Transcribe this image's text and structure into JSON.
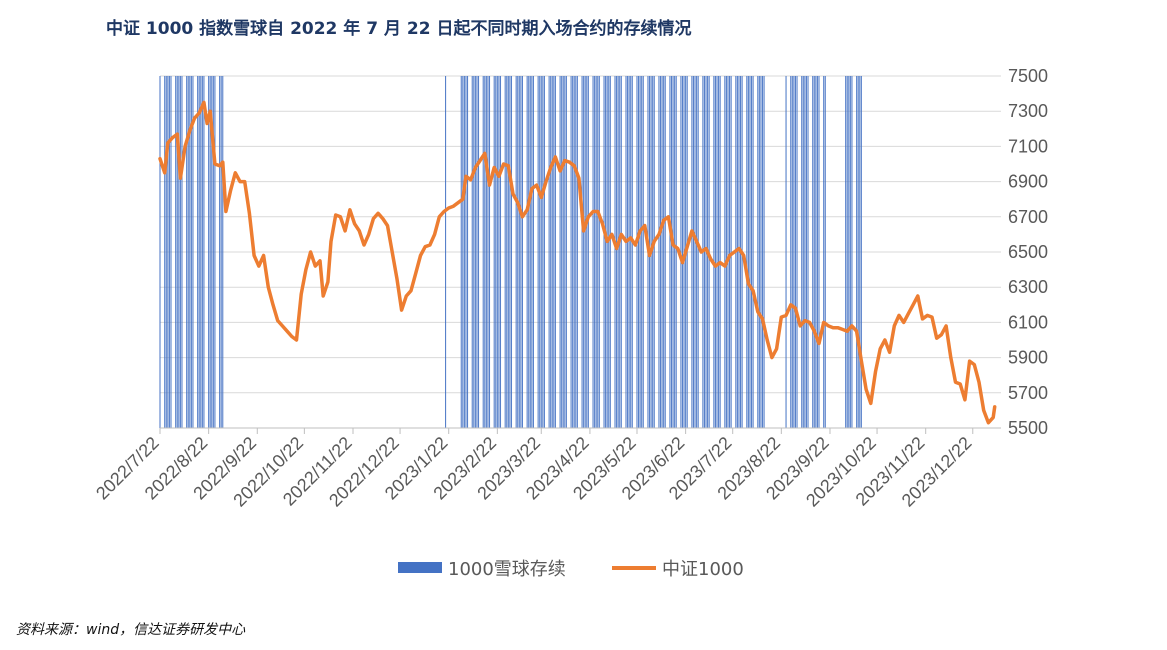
{
  "title": "中证 1000 指数雪球自 2022 年 7 月 22 日起不同时期入场合约的存续情况",
  "source": "资料来源：wind，信达证券研发中心",
  "chart_data": {
    "type": "bar+line",
    "title": "中证 1000 指数雪球自 2022 年 7 月 22 日起不同时期入场合约的存续情况",
    "x_tick_labels": [
      "2022/7/22",
      "2022/8/22",
      "2022/9/22",
      "2022/10/22",
      "2022/11/22",
      "2022/12/22",
      "2023/1/22",
      "2023/2/22",
      "2023/3/22",
      "2023/4/22",
      "2023/5/22",
      "2023/6/22",
      "2023/7/22",
      "2023/8/22",
      "2023/9/22",
      "2023/10/22",
      "2023/11/22",
      "2023/12/22"
    ],
    "x_range": [
      "2022-07-22",
      "2024-01-09"
    ],
    "ylim": [
      5500,
      7500
    ],
    "y_ticks": [
      5500,
      5700,
      5900,
      6100,
      6300,
      6500,
      6700,
      6900,
      7100,
      7300,
      7500
    ],
    "grid": "horizontal",
    "legend_position": "bottom",
    "colors": {
      "bars": "#4472c4",
      "line": "#ed7d31",
      "axis_text": "#595959",
      "title": "#1f3864"
    },
    "series": [
      {
        "name": "1000雪球存续",
        "kind": "bar",
        "description": "survival flag (1 = contract still alive) for contracts entered on each date",
        "alive_date_ranges": [
          [
            "2022-07-22",
            "2022-08-31"
          ],
          [
            "2023-01-20",
            "2023-01-20"
          ],
          [
            "2023-01-30",
            "2023-08-11"
          ],
          [
            "2023-08-25",
            "2023-09-19"
          ],
          [
            "2023-10-02",
            "2023-10-12"
          ]
        ]
      },
      {
        "name": "中证1000",
        "kind": "line",
        "points": [
          [
            "2022-07-22",
            7030
          ],
          [
            "2022-07-25",
            6950
          ],
          [
            "2022-07-27",
            7120
          ],
          [
            "2022-07-30",
            7150
          ],
          [
            "2022-08-02",
            7170
          ],
          [
            "2022-08-04",
            6920
          ],
          [
            "2022-08-07",
            7100
          ],
          [
            "2022-08-10",
            7190
          ],
          [
            "2022-08-13",
            7260
          ],
          [
            "2022-08-16",
            7290
          ],
          [
            "2022-08-19",
            7350
          ],
          [
            "2022-08-21",
            7230
          ],
          [
            "2022-08-23",
            7300
          ],
          [
            "2022-08-26",
            7000
          ],
          [
            "2022-08-29",
            6990
          ],
          [
            "2022-08-31",
            7010
          ],
          [
            "2022-09-02",
            6730
          ],
          [
            "2022-09-05",
            6850
          ],
          [
            "2022-09-08",
            6950
          ],
          [
            "2022-09-11",
            6900
          ],
          [
            "2022-09-14",
            6900
          ],
          [
            "2022-09-17",
            6720
          ],
          [
            "2022-09-20",
            6480
          ],
          [
            "2022-09-23",
            6420
          ],
          [
            "2022-09-26",
            6480
          ],
          [
            "2022-09-29",
            6300
          ],
          [
            "2022-10-02",
            6200
          ],
          [
            "2022-10-05",
            6110
          ],
          [
            "2022-10-08",
            6080
          ],
          [
            "2022-10-11",
            6050
          ],
          [
            "2022-10-14",
            6020
          ],
          [
            "2022-10-17",
            6000
          ],
          [
            "2022-10-20",
            6260
          ],
          [
            "2022-10-23",
            6400
          ],
          [
            "2022-10-26",
            6500
          ],
          [
            "2022-10-29",
            6420
          ],
          [
            "2022-11-01",
            6450
          ],
          [
            "2022-11-03",
            6250
          ],
          [
            "2022-11-06",
            6330
          ],
          [
            "2022-11-08",
            6560
          ],
          [
            "2022-11-11",
            6710
          ],
          [
            "2022-11-14",
            6700
          ],
          [
            "2022-11-17",
            6620
          ],
          [
            "2022-11-20",
            6740
          ],
          [
            "2022-11-23",
            6660
          ],
          [
            "2022-11-26",
            6620
          ],
          [
            "2022-11-29",
            6540
          ],
          [
            "2022-12-02",
            6600
          ],
          [
            "2022-12-05",
            6690
          ],
          [
            "2022-12-08",
            6720
          ],
          [
            "2022-12-11",
            6690
          ],
          [
            "2022-12-14",
            6650
          ],
          [
            "2022-12-17",
            6500
          ],
          [
            "2022-12-20",
            6350
          ],
          [
            "2022-12-23",
            6170
          ],
          [
            "2022-12-26",
            6250
          ],
          [
            "2022-12-29",
            6280
          ],
          [
            "2023-01-01",
            6380
          ],
          [
            "2023-01-04",
            6480
          ],
          [
            "2023-01-07",
            6530
          ],
          [
            "2023-01-10",
            6540
          ],
          [
            "2023-01-13",
            6600
          ],
          [
            "2023-01-16",
            6700
          ],
          [
            "2023-01-19",
            6730
          ],
          [
            "2023-01-22",
            6750
          ],
          [
            "2023-01-25",
            6760
          ],
          [
            "2023-01-28",
            6780
          ],
          [
            "2023-01-31",
            6800
          ],
          [
            "2023-02-02",
            6930
          ],
          [
            "2023-02-05",
            6910
          ],
          [
            "2023-02-08",
            6980
          ],
          [
            "2023-02-11",
            7020
          ],
          [
            "2023-02-14",
            7060
          ],
          [
            "2023-02-17",
            6880
          ],
          [
            "2023-02-20",
            6980
          ],
          [
            "2023-02-23",
            6930
          ],
          [
            "2023-02-26",
            7000
          ],
          [
            "2023-03-01",
            6990
          ],
          [
            "2023-03-04",
            6830
          ],
          [
            "2023-03-07",
            6780
          ],
          [
            "2023-03-10",
            6700
          ],
          [
            "2023-03-13",
            6740
          ],
          [
            "2023-03-16",
            6860
          ],
          [
            "2023-03-19",
            6880
          ],
          [
            "2023-03-22",
            6810
          ],
          [
            "2023-03-25",
            6900
          ],
          [
            "2023-03-28",
            6980
          ],
          [
            "2023-03-31",
            7040
          ],
          [
            "2023-04-03",
            6960
          ],
          [
            "2023-04-06",
            7020
          ],
          [
            "2023-04-09",
            7010
          ],
          [
            "2023-04-12",
            6990
          ],
          [
            "2023-04-15",
            6920
          ],
          [
            "2023-04-18",
            6620
          ],
          [
            "2023-04-21",
            6700
          ],
          [
            "2023-04-24",
            6730
          ],
          [
            "2023-04-27",
            6730
          ],
          [
            "2023-04-30",
            6660
          ],
          [
            "2023-05-03",
            6560
          ],
          [
            "2023-05-06",
            6600
          ],
          [
            "2023-05-09",
            6520
          ],
          [
            "2023-05-12",
            6600
          ],
          [
            "2023-05-15",
            6560
          ],
          [
            "2023-05-18",
            6580
          ],
          [
            "2023-05-21",
            6540
          ],
          [
            "2023-05-24",
            6620
          ],
          [
            "2023-05-27",
            6650
          ],
          [
            "2023-05-30",
            6480
          ],
          [
            "2023-06-02",
            6560
          ],
          [
            "2023-06-05",
            6600
          ],
          [
            "2023-06-08",
            6680
          ],
          [
            "2023-06-11",
            6700
          ],
          [
            "2023-06-14",
            6540
          ],
          [
            "2023-06-17",
            6520
          ],
          [
            "2023-06-20",
            6440
          ],
          [
            "2023-06-23",
            6530
          ],
          [
            "2023-06-26",
            6620
          ],
          [
            "2023-06-29",
            6560
          ],
          [
            "2023-07-02",
            6500
          ],
          [
            "2023-07-05",
            6520
          ],
          [
            "2023-07-08",
            6460
          ],
          [
            "2023-07-11",
            6420
          ],
          [
            "2023-07-14",
            6440
          ],
          [
            "2023-07-17",
            6420
          ],
          [
            "2023-07-20",
            6480
          ],
          [
            "2023-07-23",
            6500
          ],
          [
            "2023-07-26",
            6520
          ],
          [
            "2023-07-29",
            6480
          ],
          [
            "2023-08-01",
            6320
          ],
          [
            "2023-08-04",
            6280
          ],
          [
            "2023-08-07",
            6160
          ],
          [
            "2023-08-10",
            6120
          ],
          [
            "2023-08-13",
            6000
          ],
          [
            "2023-08-16",
            5900
          ],
          [
            "2023-08-19",
            5950
          ],
          [
            "2023-08-22",
            6130
          ],
          [
            "2023-08-25",
            6140
          ],
          [
            "2023-08-28",
            6200
          ],
          [
            "2023-08-31",
            6180
          ],
          [
            "2023-09-03",
            6080
          ],
          [
            "2023-09-06",
            6110
          ],
          [
            "2023-09-09",
            6100
          ],
          [
            "2023-09-12",
            6050
          ],
          [
            "2023-09-15",
            5980
          ],
          [
            "2023-09-18",
            6100
          ],
          [
            "2023-09-21",
            6080
          ],
          [
            "2023-09-24",
            6070
          ],
          [
            "2023-09-27",
            6070
          ],
          [
            "2023-09-30",
            6060
          ],
          [
            "2023-10-03",
            6050
          ],
          [
            "2023-10-06",
            6080
          ],
          [
            "2023-10-09",
            6050
          ],
          [
            "2023-10-12",
            5880
          ],
          [
            "2023-10-15",
            5720
          ],
          [
            "2023-10-18",
            5640
          ],
          [
            "2023-10-21",
            5820
          ],
          [
            "2023-10-24",
            5950
          ],
          [
            "2023-10-27",
            6000
          ],
          [
            "2023-10-30",
            5930
          ],
          [
            "2023-11-02",
            6080
          ],
          [
            "2023-11-05",
            6140
          ],
          [
            "2023-11-08",
            6100
          ],
          [
            "2023-11-11",
            6150
          ],
          [
            "2023-11-14",
            6200
          ],
          [
            "2023-11-17",
            6250
          ],
          [
            "2023-11-20",
            6120
          ],
          [
            "2023-11-23",
            6140
          ],
          [
            "2023-11-26",
            6130
          ],
          [
            "2023-11-29",
            6010
          ],
          [
            "2023-12-02",
            6030
          ],
          [
            "2023-12-05",
            6080
          ],
          [
            "2023-12-08",
            5900
          ],
          [
            "2023-12-11",
            5760
          ],
          [
            "2023-12-14",
            5750
          ],
          [
            "2023-12-17",
            5660
          ],
          [
            "2023-12-20",
            5880
          ],
          [
            "2023-12-23",
            5860
          ],
          [
            "2023-12-26",
            5760
          ],
          [
            "2023-12-29",
            5600
          ],
          [
            "2024-01-01",
            5530
          ],
          [
            "2024-01-04",
            5560
          ],
          [
            "2024-01-05",
            5620
          ]
        ]
      }
    ]
  }
}
